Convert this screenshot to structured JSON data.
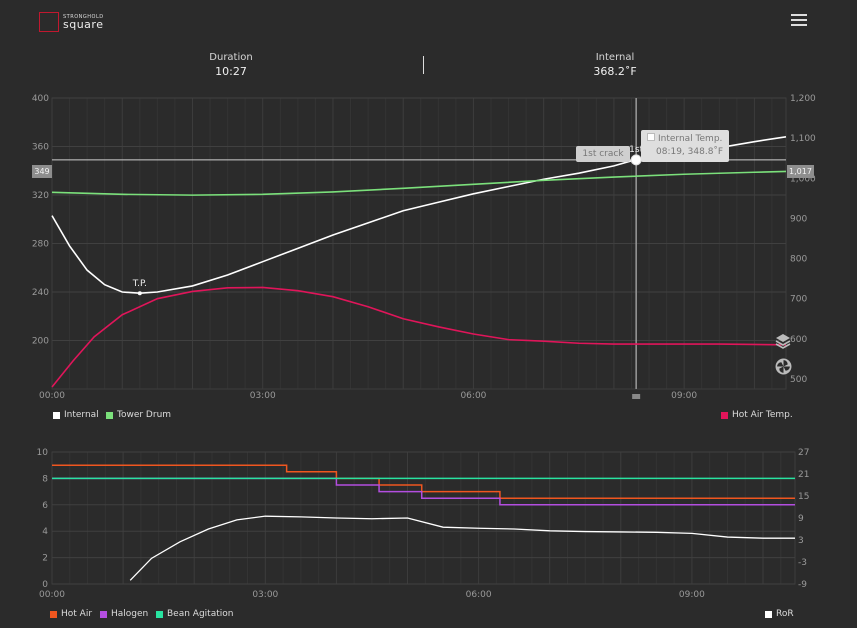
{
  "header": {
    "logo_small": "STRONGHOLD",
    "logo_big": "square",
    "menu_icon": "hamburger-menu-icon"
  },
  "stats": {
    "duration_label": "Duration",
    "duration_value": "10:27",
    "internal_label": "Internal",
    "internal_value": "368.2˚F"
  },
  "main_chart": {
    "type": "line",
    "left_ticks": [
      "400",
      "360",
      "320",
      "280",
      "240",
      "200"
    ],
    "right_ticks": [
      "1,200",
      "1,100",
      "1,000",
      "900",
      "800",
      "700",
      "600",
      "500"
    ],
    "x_ticks": [
      "00:00",
      "03:00",
      "06:00",
      "09:00"
    ],
    "left_range": [
      160,
      400
    ],
    "right_range": [
      475,
      1200
    ],
    "x_range_min": [
      0,
      10.45
    ],
    "cursor_left_tag": "349",
    "cursor_right_tag": "1,017",
    "tp_label": "T.P.",
    "crack_marker": "1st",
    "crack_button": "1st crack",
    "tooltip_title": "Internal Temp.",
    "tooltip_value": "08:19, 348.8˚F",
    "colors": {
      "internal": "#ffffff",
      "tower": "#7be07b",
      "hot_air": "#e0155a"
    },
    "series": [
      {
        "name": "Internal",
        "axis": "left",
        "x": [
          0,
          0.25,
          0.5,
          0.75,
          1,
          1.25,
          1.5,
          2,
          2.5,
          3,
          3.5,
          4,
          4.5,
          5,
          5.5,
          6,
          6.5,
          7,
          7.5,
          8,
          8.3,
          8.7,
          9,
          9.5,
          10,
          10.45
        ],
        "y": [
          303,
          278,
          258,
          246,
          240,
          239,
          240,
          245,
          254,
          265,
          276,
          287,
          297,
          307,
          314,
          321,
          327,
          333,
          338,
          344,
          349,
          352,
          355,
          359,
          364,
          368
        ]
      },
      {
        "name": "Tower Drum",
        "axis": "right",
        "x": [
          0,
          1,
          2,
          3,
          4,
          5,
          6,
          7,
          8,
          9,
          10,
          10.45
        ],
        "y": [
          965,
          960,
          958,
          960,
          966,
          975,
          985,
          995,
          1003,
          1010,
          1015,
          1017
        ]
      },
      {
        "name": "Hot Air Temp.",
        "axis": "right",
        "x": [
          0,
          0.3,
          0.6,
          1,
          1.5,
          2,
          2.5,
          3,
          3.5,
          4,
          4.5,
          5,
          5.5,
          6,
          6.5,
          7,
          7.5,
          8,
          8.5,
          9,
          9.5,
          10,
          10.45
        ],
        "y": [
          480,
          545,
          605,
          660,
          700,
          718,
          727,
          728,
          720,
          705,
          680,
          650,
          630,
          612,
          598,
          594,
          589,
          587,
          587,
          587,
          587,
          586,
          585
        ]
      }
    ]
  },
  "main_legend": [
    {
      "label": "Internal",
      "color": "#ffffff"
    },
    {
      "label": "Tower Drum",
      "color": "#7be07b"
    },
    {
      "label": "Hot Air Temp.",
      "color": "#e0155a"
    }
  ],
  "side_icons": [
    "layers-icon",
    "fan-icon"
  ],
  "sub_chart": {
    "type": "line",
    "left_ticks": [
      "10",
      "8",
      "6",
      "4",
      "2",
      "0"
    ],
    "right_ticks": [
      "27",
      "21",
      "15",
      "9",
      "3",
      "-3",
      "-9"
    ],
    "x_ticks": [
      "00:00",
      "03:00",
      "06:00",
      "09:00"
    ],
    "left_range": [
      0,
      10
    ],
    "right_range": [
      -9,
      27
    ],
    "colors": {
      "hot_air": "#f0561f",
      "halogen": "#b34ee0",
      "bean": "#28e3a0",
      "ror": "#ffffff"
    },
    "series": [
      {
        "name": "Hot Air",
        "axis": "left",
        "step": true,
        "x": [
          0,
          3.3,
          4,
          4.6,
          5.2,
          6.3,
          10.45
        ],
        "y": [
          9,
          8.5,
          8,
          7.5,
          7,
          6.5,
          6.5
        ]
      },
      {
        "name": "Halogen",
        "axis": "left",
        "step": true,
        "x": [
          0,
          4,
          4.6,
          5.2,
          6.3,
          10.45
        ],
        "y": [
          8,
          7.5,
          7,
          6.5,
          6,
          6
        ]
      },
      {
        "name": "Bean Agitation",
        "axis": "left",
        "step": true,
        "x": [
          0,
          4,
          10.45
        ],
        "y": [
          8,
          8,
          8
        ]
      },
      {
        "name": "RoR",
        "axis": "right",
        "x": [
          1.1,
          1.4,
          1.8,
          2.2,
          2.6,
          3,
          3.5,
          4,
          4.5,
          5,
          5.5,
          6,
          6.5,
          7,
          7.5,
          8,
          8.5,
          9,
          9.5,
          10,
          10.45
        ],
        "y": [
          -8,
          -2,
          2.5,
          6,
          8.5,
          9.5,
          9.3,
          9,
          8.8,
          9,
          6.5,
          6.2,
          6,
          5.5,
          5.3,
          5.2,
          5.1,
          4.8,
          3.8,
          3.5,
          3.5
        ]
      }
    ]
  },
  "sub_legend": [
    {
      "label": "Hot Air",
      "color": "#f0561f"
    },
    {
      "label": "Halogen",
      "color": "#b34ee0"
    },
    {
      "label": "Bean Agitation",
      "color": "#28e3a0"
    },
    {
      "label": "RoR",
      "color": "#ffffff"
    }
  ]
}
